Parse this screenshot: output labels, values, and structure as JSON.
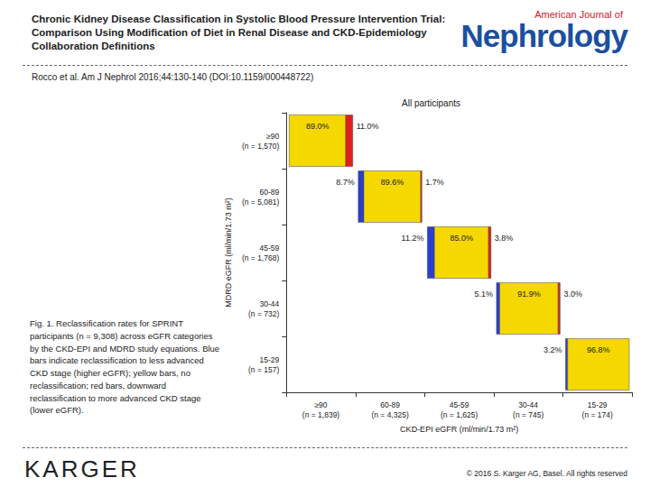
{
  "slide": {
    "title": "Chronic Kidney Disease Classification in Systolic Blood Pressure Intervention Trial: Comparison Using Modification of Diet in Renal Disease and CKD-Epidemiology Collaboration Definitions",
    "journal_small": "American Journal of",
    "journal_name": "Nephrology",
    "citation": "Rocco et al. Am J Nephrol 2016;44:130-140 (DOI:10.1159/000448722)",
    "caption": "Fig. 1. Reclassification rates for SPRINT participants (n = 9,308) across eGFR categories by the CKD-EPI and MDRD study equations. Blue bars indicate reclassification to less advanced CKD stage (higher eGFR); yellow bars, no reclassification; red bars, downward reclassification to more advanced CKD stage (lower eGFR).",
    "publisher": "KARGER",
    "copyright": "© 2016 S. Karger AG, Basel. All rights reserved"
  },
  "chart_data": {
    "type": "reclassification",
    "title": "All participants",
    "x_label": "CKD-EPI eGFR (ml/min/1.73 m²)",
    "y_label": "MDRD eGFR (ml/min/1.73 m²)",
    "categories": [
      "≥90\n(n = 1,839)",
      "60-89\n(n = 4,325)",
      "45-59\n(n = 1,625)",
      "30-44\n(n = 745)",
      "15-29\n(n = 174)"
    ],
    "y_categories": [
      "≥90\n(n = 1,570)",
      "60-89\n(n = 5,081)",
      "45-59\n(n = 1,768)",
      "30-44\n(n = 732)",
      "15-29\n(n = 157)"
    ],
    "stacked": true,
    "data_labels": true,
    "grid": false,
    "series": [
      {
        "color": "#2b3fcf",
        "values": [
          null,
          8.7,
          11.2,
          5.1,
          3.2
        ],
        "value_labels": [
          null,
          "8.7%",
          "11.2%",
          "5.1%",
          "3.2%"
        ]
      },
      {
        "color": "#f5d800",
        "values": [
          89.0,
          89.6,
          85.0,
          91.9,
          96.8
        ],
        "value_labels": [
          "89.0%",
          "89.6%",
          "85.0%",
          "91.9%",
          "96.8%"
        ]
      },
      {
        "color": "#e0201b",
        "values": [
          11.0,
          1.7,
          3.8,
          3.0,
          null
        ],
        "value_labels": [
          "11.0%",
          "1.7%",
          "3.8%",
          "3.0%",
          null
        ]
      }
    ]
  }
}
